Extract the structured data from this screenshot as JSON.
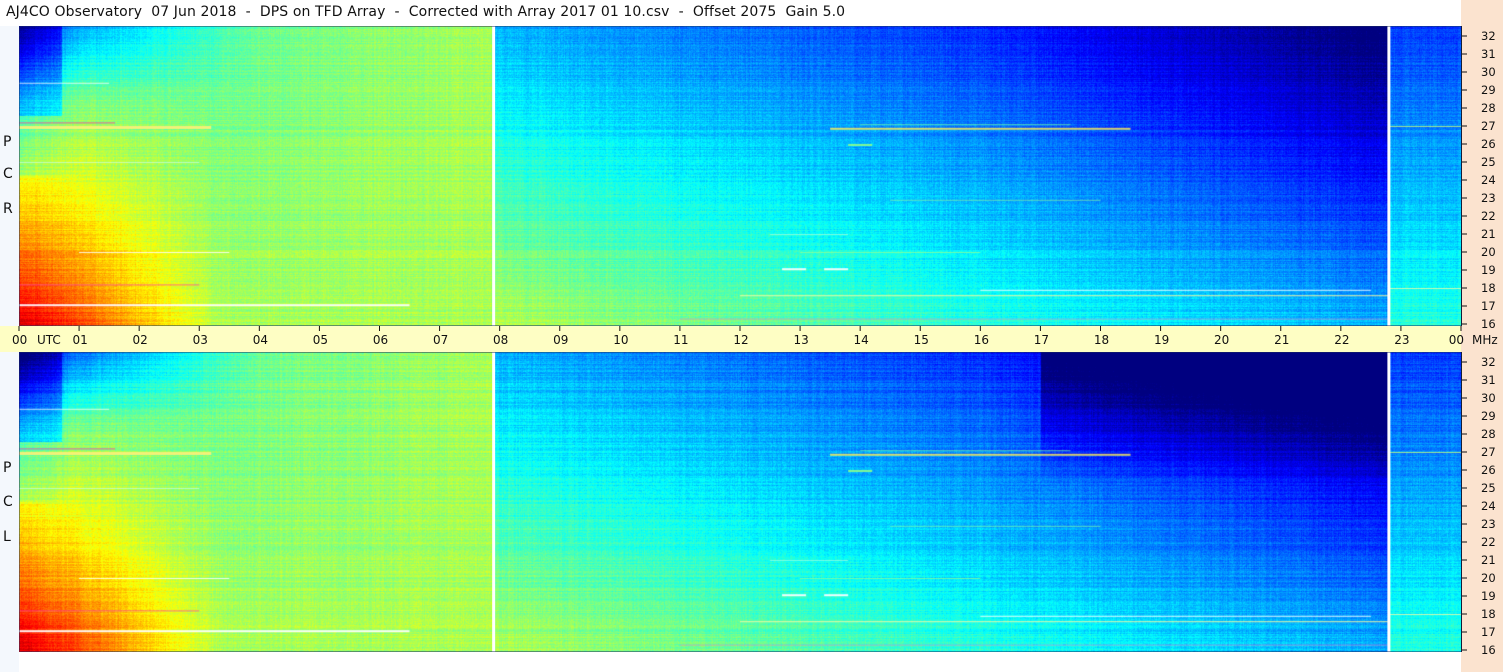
{
  "title": "AJ4CO Observatory  07 Jun 2018  -  DPS on TFD Array  -  Corrected with Array 2017 01 10.csv  -  Offset 2075  Gain 5.0",
  "panels": {
    "top": {
      "polarization": [
        "P",
        "C",
        "R"
      ]
    },
    "bottom": {
      "polarization": [
        "P",
        "C",
        "L"
      ]
    }
  },
  "time_axis": {
    "utc_label": "UTC",
    "unit_label": "MHz",
    "hour_labels": [
      "00",
      "01",
      "02",
      "03",
      "04",
      "05",
      "06",
      "07",
      "08",
      "09",
      "10",
      "11",
      "12",
      "13",
      "14",
      "15",
      "16",
      "17",
      "18",
      "19",
      "20",
      "21",
      "22",
      "23",
      "00"
    ]
  },
  "chart_data": {
    "type": "heatmap",
    "title": "AJ4CO Observatory  07 Jun 2018  -  DPS on TFD Array  -  Corrected with Array 2017 01 10.csv  -  Offset 2075  Gain 5.0",
    "x": {
      "label": "UTC",
      "range_hours": [
        0,
        24
      ],
      "tick_labels": [
        "00",
        "01",
        "02",
        "03",
        "04",
        "05",
        "06",
        "07",
        "08",
        "09",
        "10",
        "11",
        "12",
        "13",
        "14",
        "15",
        "16",
        "17",
        "18",
        "19",
        "20",
        "21",
        "22",
        "23",
        "00"
      ]
    },
    "y": {
      "label": "MHz",
      "range": [
        16,
        32
      ],
      "tick_labels": [
        "16",
        "17",
        "18",
        "19",
        "20",
        "21",
        "22",
        "23",
        "24",
        "25",
        "26",
        "27",
        "28",
        "29",
        "30",
        "31",
        "32"
      ]
    },
    "series": [
      {
        "name": "RCP",
        "panel": "top"
      },
      {
        "name": "LCP",
        "panel": "bottom"
      }
    ],
    "vertical_markers_utc": [
      7.9,
      22.8
    ],
    "colormap": "jet",
    "grid": false
  },
  "colors": {
    "right_axis_bg": "#fbe3cf",
    "time_bar_bg": "#fefec4",
    "marker_line": "#ffffff"
  }
}
